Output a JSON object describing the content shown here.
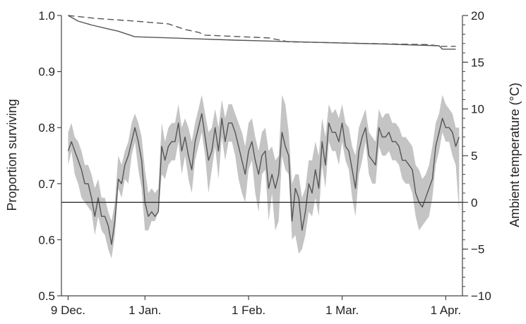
{
  "chart_data": {
    "type": "line",
    "title": "",
    "xlabel": "",
    "ylabel_left": "Proportion surviving",
    "ylabel_right": "Ambient temperature (°C)",
    "x_ticks": [
      {
        "label": "9 Dec.",
        "day": 0
      },
      {
        "label": "1 Jan.",
        "day": 23
      },
      {
        "label": "1 Feb.",
        "day": 54
      },
      {
        "label": "1 Mar.",
        "day": 82
      },
      {
        "label": "1 Apr.",
        "day": 113
      }
    ],
    "x_range_days": [
      -2,
      118
    ],
    "left_axis": {
      "ylim": [
        0.5,
        1.0
      ],
      "ticks": [
        "0.5",
        "0.6",
        "0.7",
        "0.8",
        "0.9",
        "1.0"
      ]
    },
    "right_axis": {
      "ylim": [
        -10,
        20
      ],
      "ticks": [
        "−10",
        "−5",
        "0",
        "5",
        "10",
        "15",
        "20"
      ],
      "minor_step": 1
    },
    "reference_line_temp": 0,
    "colors": {
      "line": "#555555",
      "band": "#c4c4c4",
      "axis": "#444444",
      "zero_line": "#333333"
    },
    "series": [
      {
        "axis": "left",
        "style": "solid",
        "x": [
          0,
          3,
          7,
          12,
          15,
          18,
          20,
          50,
          75,
          95,
          111,
          112,
          116
        ],
        "y": [
          1.0,
          0.99,
          0.983,
          0.976,
          0.972,
          0.966,
          0.962,
          0.956,
          0.952,
          0.949,
          0.946,
          0.94,
          0.94
        ]
      },
      {
        "axis": "left",
        "style": "dashed",
        "x": [
          0,
          8,
          20,
          30,
          35,
          39,
          41,
          60,
          66,
          75,
          90,
          108,
          112,
          116
        ],
        "y": [
          1.0,
          0.995,
          0.99,
          0.985,
          0.975,
          0.97,
          0.965,
          0.96,
          0.953,
          0.952,
          0.95,
          0.948,
          0.945,
          0.945
        ]
      },
      {
        "axis": "right",
        "style": "solid",
        "with_band": true,
        "x": [
          0,
          1,
          2,
          3,
          4,
          5,
          6,
          7,
          8,
          9,
          10,
          11,
          12,
          13,
          14,
          15,
          16,
          17,
          18,
          19,
          20,
          21,
          22,
          23,
          24,
          25,
          26,
          27,
          28,
          29,
          30,
          31,
          32,
          33,
          34,
          35,
          36,
          37,
          38,
          39,
          40,
          41,
          42,
          43,
          44,
          45,
          46,
          47,
          48,
          49,
          50,
          51,
          52,
          53,
          54,
          55,
          56,
          57,
          58,
          59,
          60,
          61,
          62,
          63,
          64,
          65,
          66,
          67,
          68,
          69,
          70,
          71,
          72,
          73,
          74,
          75,
          76,
          77,
          78,
          79,
          80,
          81,
          82,
          83,
          84,
          85,
          86,
          87,
          88,
          89,
          90,
          91,
          92,
          93,
          94,
          95,
          96,
          97,
          98,
          99,
          100,
          101,
          102,
          103,
          104,
          105,
          106,
          107,
          108,
          109,
          110,
          111,
          112,
          113,
          114,
          115,
          116,
          117
        ],
        "y": [
          5.5,
          6.5,
          5.5,
          4.5,
          3.5,
          2.0,
          2.0,
          0.5,
          -1.5,
          0.5,
          -1.5,
          -1.5,
          -2.5,
          -4.5,
          -2.0,
          2.5,
          2.0,
          4.0,
          5.0,
          6.5,
          8.0,
          6.5,
          4.5,
          0.0,
          -1.5,
          -1.0,
          -1.5,
          -1.0,
          6.0,
          4.5,
          6.0,
          6.5,
          6.5,
          8.5,
          5.5,
          7.0,
          5.0,
          3.5,
          6.5,
          8.0,
          9.5,
          7.0,
          4.5,
          5.5,
          8.0,
          5.5,
          9.0,
          6.5,
          8.5,
          8.5,
          7.5,
          6.0,
          4.5,
          3.0,
          5.5,
          6.5,
          4.5,
          3.0,
          5.0,
          5.5,
          1.5,
          3.0,
          1.5,
          3.0,
          7.5,
          6.0,
          5.0,
          -2.0,
          1.5,
          0.5,
          -3.0,
          -1.0,
          2.0,
          1.0,
          3.5,
          1.5,
          6.5,
          4.0,
          8.5,
          7.5,
          7.5,
          6.5,
          8.5,
          6.0,
          5.5,
          3.5,
          1.5,
          5.5,
          7.0,
          8.0,
          5.0,
          4.5,
          4.0,
          8.0,
          7.0,
          7.0,
          7.5,
          6.5,
          6.5,
          6.0,
          4.5,
          4.5,
          4.0,
          3.5,
          1.0,
          0.0,
          -0.5,
          0.5,
          1.5,
          2.5,
          6.0,
          7.5,
          9.0,
          8.0,
          8.0,
          7.5,
          6.0,
          7.0
        ],
        "band_low": [
          4.0,
          5.5,
          3.0,
          2.0,
          0.5,
          0.0,
          -0.5,
          -1.0,
          -3.5,
          -1.5,
          -3.0,
          -3.5,
          -5.0,
          -6.0,
          -3.5,
          1.5,
          0.5,
          2.5,
          2.0,
          5.0,
          6.5,
          3.5,
          1.5,
          -3.0,
          -3.0,
          -2.0,
          -2.0,
          -1.0,
          3.0,
          2.5,
          4.0,
          4.5,
          4.5,
          6.5,
          3.0,
          5.0,
          2.5,
          1.0,
          4.5,
          6.0,
          7.5,
          5.0,
          1.0,
          3.5,
          6.0,
          2.5,
          7.0,
          4.5,
          6.5,
          6.5,
          5.0,
          2.5,
          1.0,
          0.0,
          3.5,
          4.5,
          1.0,
          -1.0,
          3.0,
          3.5,
          -2.0,
          1.0,
          -3.0,
          -2.0,
          5.0,
          3.5,
          3.0,
          -4.0,
          -3.5,
          -5.5,
          -5.0,
          -3.5,
          -1.0,
          -1.5,
          0.5,
          -1.5,
          4.0,
          1.5,
          6.5,
          5.5,
          5.5,
          4.0,
          6.5,
          4.5,
          3.5,
          0.5,
          -1.5,
          3.0,
          4.5,
          6.5,
          3.0,
          2.0,
          2.0,
          6.0,
          5.0,
          5.0,
          5.5,
          4.5,
          4.5,
          4.0,
          2.5,
          2.0,
          2.0,
          1.0,
          -1.5,
          -3.0,
          -2.5,
          -2.0,
          -1.5,
          0.5,
          4.0,
          5.5,
          7.5,
          6.5,
          6.5,
          5.0,
          4.0,
          -1.0
        ],
        "band_high": [
          7.5,
          8.5,
          7.0,
          6.5,
          5.5,
          4.0,
          4.0,
          3.0,
          1.5,
          2.5,
          0.5,
          0.5,
          -1.0,
          -2.0,
          0.0,
          5.0,
          4.0,
          5.5,
          6.5,
          8.5,
          9.5,
          8.5,
          7.0,
          3.5,
          1.0,
          1.5,
          1.0,
          1.5,
          8.5,
          6.5,
          8.0,
          8.5,
          8.5,
          10.5,
          8.0,
          9.0,
          8.0,
          6.5,
          8.5,
          10.0,
          11.5,
          9.5,
          7.5,
          8.0,
          10.0,
          8.0,
          11.0,
          9.0,
          10.5,
          10.5,
          9.5,
          8.5,
          7.5,
          6.0,
          8.5,
          9.0,
          7.0,
          5.5,
          7.5,
          8.0,
          5.5,
          6.0,
          4.5,
          5.0,
          11.5,
          10.5,
          7.5,
          2.0,
          3.0,
          3.0,
          0.5,
          1.5,
          4.5,
          4.5,
          6.5,
          5.0,
          9.0,
          7.0,
          10.5,
          9.5,
          10.0,
          9.0,
          10.5,
          8.5,
          8.0,
          6.0,
          5.0,
          8.0,
          9.0,
          10.0,
          7.5,
          7.0,
          6.5,
          10.0,
          9.0,
          9.5,
          9.5,
          8.5,
          8.5,
          8.0,
          7.0,
          7.0,
          6.5,
          6.0,
          4.0,
          3.5,
          2.5,
          3.0,
          4.0,
          6.0,
          8.5,
          9.5,
          11.5,
          10.5,
          10.0,
          9.5,
          8.0,
          8.0
        ]
      }
    ]
  }
}
